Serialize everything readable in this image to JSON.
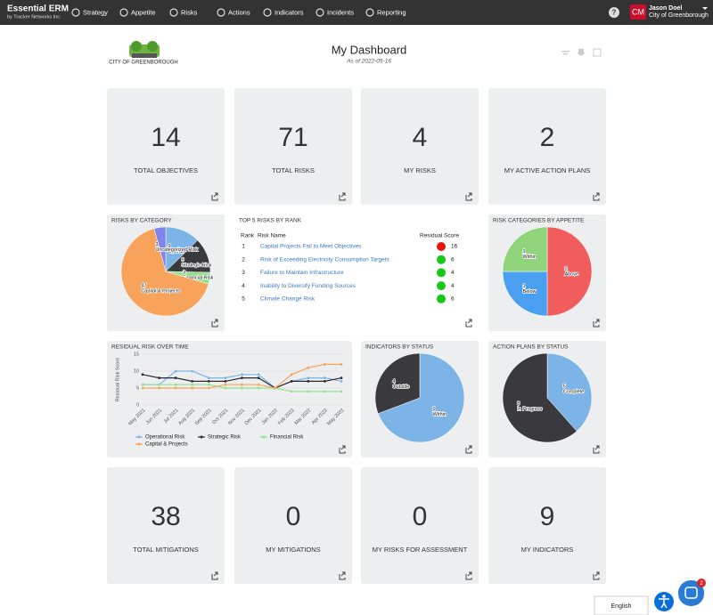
{
  "nav": {
    "brand": "Essential ERM",
    "brand_sub": "by Tracker Networks Inc.",
    "items": [
      "Strategy",
      "Appetite",
      "Risks",
      "Actions",
      "Indicators",
      "Incidents",
      "Reporting"
    ],
    "avatar": "CM",
    "user": "Jason Doel",
    "org": "City of Greenborough"
  },
  "header": {
    "logo_text": "CITY OF GREENBOROUGH",
    "title": "My Dashboard",
    "subtitle": "As of 2022-05-16"
  },
  "kpis": [
    {
      "value": 14,
      "label": "TOTAL OBJECTIVES"
    },
    {
      "value": 71,
      "label": "TOTAL RISKS"
    },
    {
      "value": 4,
      "label": "MY RISKS"
    },
    {
      "value": 2,
      "label": "MY ACTIVE ACTION PLANS"
    },
    {
      "value": 38,
      "label": "TOTAL MITIGATIONS"
    },
    {
      "value": 0,
      "label": "MY MITIGATIONS"
    },
    {
      "value": 0,
      "label": "MY RISKS FOR ASSESSMENT"
    },
    {
      "value": 9,
      "label": "MY INDICATORS"
    }
  ],
  "top_risks": {
    "title": "TOP 5 RISKS BY RANK",
    "columns": [
      "Rank",
      "Risk Name",
      "Residual Score"
    ],
    "rows": [
      {
        "rank": 1,
        "name": "Capital Projects Fail to Meet Objectives",
        "score": 16,
        "color": "#e8140e"
      },
      {
        "rank": 2,
        "name": "Risk of Exceeding Electricity Consumption Targets",
        "score": 6,
        "color": "#15c915"
      },
      {
        "rank": 3,
        "name": "Failure to Maintain Infrastructure",
        "score": 4,
        "color": "#15c915"
      },
      {
        "rank": 4,
        "name": "Inability to Diversify Funding Sources",
        "score": 4,
        "color": "#15c915"
      },
      {
        "rank": 5,
        "name": "Climate Change Risk",
        "score": 6,
        "color": "#15c915"
      }
    ]
  },
  "chart_data": [
    {
      "type": "pie",
      "title": "RISKS BY CATEGORY",
      "categories": [
        "Operational Risk",
        "Strategic Risk",
        "Financial Risk",
        "Capital & Projects",
        "Uncategorized Risk"
      ],
      "values": [
        9,
        9,
        3,
        47,
        3
      ],
      "colors": [
        "#7cb4e8",
        "#3a3a3e",
        "#90e38c",
        "#f7a35c",
        "#8085e9"
      ]
    },
    {
      "type": "pie",
      "title": "RISK CATEGORIES BY APPETITE",
      "categories": [
        "Above",
        "Below",
        "Within"
      ],
      "values": [
        2,
        1,
        1
      ],
      "colors": [
        "#f15c5c",
        "#4a9ff0",
        "#90d47c"
      ]
    },
    {
      "type": "line",
      "title": "RESIDUAL RISK OVER TIME",
      "y_label": "Residual Risk Score",
      "categories": [
        "May 2021",
        "Jun 2021",
        "Jul 2021",
        "Aug 2021",
        "Sep 2021",
        "Oct 2021",
        "Nov 2021",
        "Dec 2021",
        "Jan 2022",
        "Feb 2022",
        "Mar 2022",
        "Apr 2022",
        "May 2022"
      ],
      "ylim": [
        0,
        15
      ],
      "yticks": [
        0,
        5,
        10,
        15
      ],
      "grid": true,
      "series": [
        {
          "name": "Operational Risk",
          "color": "#7cb4e8",
          "values": [
            6,
            6,
            10,
            10,
            8,
            8,
            9,
            9,
            5,
            7,
            8,
            8,
            7
          ]
        },
        {
          "name": "Strategic Risk",
          "color": "#2b2b2f",
          "values": [
            9,
            8,
            8,
            7,
            7,
            7,
            8,
            8,
            5,
            7,
            7,
            7,
            8
          ]
        },
        {
          "name": "Financial Risk",
          "color": "#90e38c",
          "values": [
            6,
            6,
            6,
            6,
            6,
            5,
            5,
            5,
            5,
            4,
            4,
            4,
            4
          ]
        },
        {
          "name": "Capital & Projects",
          "color": "#f7a35c",
          "values": [
            5,
            5,
            5,
            5,
            5,
            6,
            6,
            6,
            5,
            9,
            11,
            12,
            12
          ]
        }
      ]
    },
    {
      "type": "pie",
      "title": "INDICATORS BY STATUS",
      "categories": [
        "Within",
        "Outside"
      ],
      "values": [
        9,
        4
      ],
      "colors": [
        "#7cb4e8",
        "#3a3a3e"
      ]
    },
    {
      "type": "pie",
      "title": "ACTION PLANS BY STATUS",
      "categories": [
        "Complete",
        "In Progress"
      ],
      "values": [
        5,
        8
      ],
      "colors": [
        "#7cb4e8",
        "#3a3a3e"
      ]
    }
  ],
  "footer": {
    "language": "English",
    "badge": 2
  }
}
